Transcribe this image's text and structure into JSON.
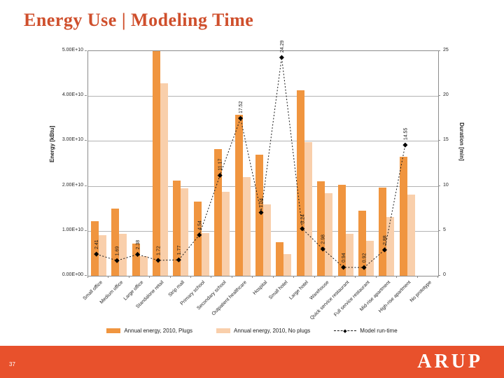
{
  "slide": {
    "title": "Energy Use | Modeling Time",
    "page_number": "37",
    "logo_text": "ARUP",
    "title_color": "#cf4f2c",
    "footer_color": "#e8512c"
  },
  "chart_data": {
    "type": "bar",
    "subtype": "grouped bars with secondary-axis line",
    "title": "",
    "categories": [
      "Small office",
      "Medium office",
      "Large office",
      "Standalone retail",
      "Strip mall",
      "Primary school",
      "Secondary school",
      "Outpatient healthcare",
      "Hospital",
      "Small hotel",
      "Large hotel",
      "Warehouse",
      "Quick service restaurant",
      "Full service restaurant",
      "Mid-rise apartment",
      "High-rise apartment",
      "No prototype"
    ],
    "energy_unit_multiplier": 1000000000,
    "series": [
      {
        "name": "Annual energy, 2010, Plugs",
        "type": "bar",
        "axis": "left",
        "color": "#f0953f",
        "values": [
          12.1,
          15.0,
          7.2,
          50.0,
          21.2,
          16.5,
          28.2,
          35.8,
          26.9,
          7.5,
          41.3,
          21.0,
          20.2,
          14.5,
          19.6,
          26.5,
          null
        ]
      },
      {
        "name": "Annual energy, 2010, No plugs",
        "type": "bar",
        "axis": "left",
        "color": "#f9cfab",
        "values": [
          9.0,
          9.3,
          4.4,
          42.8,
          19.5,
          9.5,
          18.7,
          22.0,
          15.9,
          4.8,
          29.8,
          18.4,
          9.3,
          7.8,
          13.1,
          18.1,
          null
        ]
      },
      {
        "name": "Model run-time",
        "type": "line",
        "axis": "right",
        "color": "#1a1a1a",
        "marker": "diamond",
        "line_style": "dashed",
        "values": [
          2.41,
          1.69,
          2.38,
          1.72,
          1.77,
          4.54,
          11.17,
          17.52,
          7.04,
          24.29,
          5.24,
          2.98,
          0.94,
          0.92,
          2.88,
          14.55,
          null
        ]
      }
    ],
    "clipped_categories": [
      "Standalone retail"
    ],
    "left_axis": {
      "label": "Energy [kBtu]",
      "range": [
        0,
        50
      ],
      "ticks": [
        "0.00E+00",
        "1.00E+10",
        "2.00E+10",
        "3.00E+10",
        "4.00E+10",
        "5.00E+10"
      ]
    },
    "right_axis": {
      "label": "Duration [min]",
      "range": [
        0,
        25
      ],
      "ticks": [
        "0",
        "5",
        "10",
        "15",
        "20",
        "25"
      ]
    },
    "grid": true,
    "legend_position": "bottom",
    "data_labels": "line series only, rotated vertical, two decimals"
  }
}
